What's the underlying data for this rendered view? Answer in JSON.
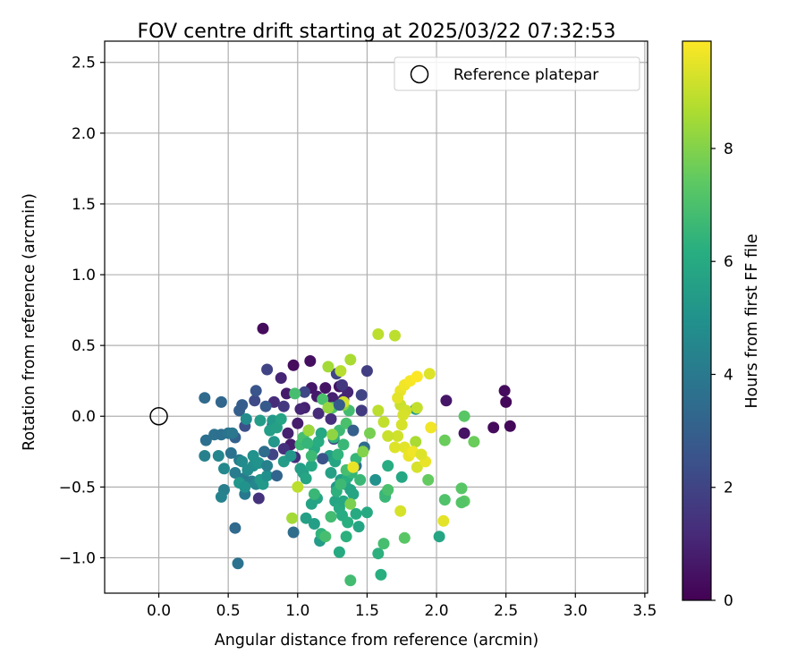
{
  "chart_data": {
    "type": "scatter",
    "title": "FOV centre drift starting at 2025/03/22 07:32:53",
    "xlabel": "Angular distance from reference (arcmin)",
    "ylabel": "Rotation from reference (arcmin)",
    "colorbar_label": "Hours from first FF file",
    "colormap": "viridis",
    "xlim": [
      -0.39,
      3.52
    ],
    "ylim": [
      -1.25,
      2.65
    ],
    "x_ticks": [
      0.0,
      0.5,
      1.0,
      1.5,
      2.0,
      2.5,
      3.0,
      3.5
    ],
    "x_tick_labels": [
      "0.0",
      "0.5",
      "1.0",
      "1.5",
      "2.0",
      "2.5",
      "3.0",
      "3.5"
    ],
    "y_ticks": [
      -1.0,
      -0.5,
      0.0,
      0.5,
      1.0,
      1.5,
      2.0,
      2.5
    ],
    "y_tick_labels": [
      "−1.0",
      "−0.5",
      "0.0",
      "0.5",
      "1.0",
      "1.5",
      "2.0",
      "2.5"
    ],
    "colorbar_range": [
      0,
      9.9
    ],
    "colorbar_ticks": [
      0,
      2,
      4,
      6,
      8
    ],
    "colorbar_tick_labels": [
      "0",
      "2",
      "4",
      "6",
      "8"
    ],
    "grid": true,
    "legend": {
      "position": "top-right",
      "entries": [
        "Reference platepar"
      ]
    },
    "reference_point": {
      "name": "Reference platepar",
      "x": 0.0,
      "y": 0.0
    },
    "points": [
      [
        0.75,
        0.62,
        0.3
      ],
      [
        0.97,
        0.36,
        0.3
      ],
      [
        1.09,
        0.39,
        0.4
      ],
      [
        2.49,
        0.18,
        0.3
      ],
      [
        2.5,
        0.1,
        0.2
      ],
      [
        2.53,
        -0.07,
        0.2
      ],
      [
        2.41,
        -0.08,
        0.3
      ],
      [
        2.2,
        -0.12,
        0.5
      ],
      [
        2.07,
        0.11,
        0.6
      ],
      [
        1.1,
        0.2,
        0.6
      ],
      [
        1.2,
        0.2,
        0.5
      ],
      [
        1.14,
        0.14,
        0.7
      ],
      [
        1.05,
        0.06,
        0.9
      ],
      [
        1.3,
        0.21,
        0.5
      ],
      [
        1.25,
        0.13,
        0.9
      ],
      [
        0.88,
        0.27,
        1.0
      ],
      [
        0.92,
        0.16,
        0.7
      ],
      [
        1.0,
        -0.05,
        0.8
      ],
      [
        1.02,
        0.05,
        1.0
      ],
      [
        0.83,
        0.1,
        1.2
      ],
      [
        0.93,
        -0.12,
        0.9
      ],
      [
        1.08,
        -0.1,
        1.1
      ],
      [
        0.95,
        -0.2,
        0.8
      ],
      [
        1.33,
        0.12,
        1.1
      ],
      [
        1.36,
        0.17,
        1.0
      ],
      [
        1.15,
        0.02,
        1.2
      ],
      [
        1.24,
        -0.02,
        1.3
      ],
      [
        0.98,
        -0.29,
        1.3
      ],
      [
        0.72,
        -0.58,
        1.4
      ],
      [
        0.9,
        -0.23,
        1.4
      ],
      [
        0.9,
        0.07,
        1.6
      ],
      [
        1.5,
        0.32,
        1.8
      ],
      [
        0.78,
        0.33,
        2.0
      ],
      [
        1.28,
        0.3,
        2.0
      ],
      [
        1.32,
        0.22,
        1.6
      ],
      [
        1.46,
        0.04,
        1.7
      ],
      [
        1.26,
        -0.16,
        2.0
      ],
      [
        0.82,
        -0.27,
        2.0
      ],
      [
        1.05,
        0.17,
        2.1
      ],
      [
        0.69,
        0.11,
        2.2
      ],
      [
        0.62,
        -0.07,
        2.4
      ],
      [
        0.58,
        0.04,
        3.0
      ],
      [
        0.7,
        0.18,
        2.6
      ],
      [
        0.77,
        0.07,
        2.8
      ],
      [
        0.82,
        -0.06,
        3.0
      ],
      [
        0.55,
        -0.15,
        3.1
      ],
      [
        0.45,
        0.1,
        3.3
      ],
      [
        0.33,
        0.13,
        3.4
      ],
      [
        0.55,
        -0.79,
        3.4
      ],
      [
        0.97,
        -0.82,
        3.5
      ],
      [
        1.48,
        -0.22,
        3.5
      ],
      [
        1.42,
        -0.35,
        3.6
      ],
      [
        0.57,
        -1.04,
        3.7
      ],
      [
        0.34,
        -0.17,
        3.6
      ],
      [
        0.4,
        -0.13,
        3.7
      ],
      [
        0.45,
        -0.13,
        3.6
      ],
      [
        0.5,
        -0.12,
        3.8
      ],
      [
        0.53,
        -0.12,
        3.9
      ],
      [
        0.52,
        -0.26,
        3.7
      ],
      [
        0.58,
        -0.31,
        4.0
      ],
      [
        0.61,
        -0.44,
        4.1
      ],
      [
        0.67,
        -0.46,
        4.2
      ],
      [
        0.7,
        -0.48,
        4.5
      ],
      [
        0.62,
        -0.55,
        4.0
      ],
      [
        0.55,
        -0.4,
        4.1
      ],
      [
        0.47,
        -0.52,
        4.2
      ],
      [
        0.47,
        -0.37,
        4.6
      ],
      [
        0.45,
        -0.57,
        4.4
      ],
      [
        0.33,
        -0.28,
        4.3
      ],
      [
        0.43,
        -0.28,
        4.5
      ],
      [
        0.6,
        -0.32,
        4.7
      ],
      [
        0.63,
        -0.02,
        4.8
      ],
      [
        0.68,
        -0.35,
        4.9
      ],
      [
        0.72,
        -0.33,
        5.0
      ],
      [
        0.73,
        -0.45,
        5.2
      ],
      [
        0.75,
        -0.48,
        5.3
      ],
      [
        0.78,
        -0.42,
        4.9
      ],
      [
        0.58,
        -0.47,
        5.2
      ],
      [
        0.62,
        -0.5,
        5.0
      ],
      [
        0.73,
        -0.03,
        5.4
      ],
      [
        0.82,
        -0.03,
        5.3
      ],
      [
        0.8,
        -0.1,
        5.5
      ],
      [
        0.85,
        -0.08,
        5.6
      ],
      [
        0.88,
        -0.02,
        5.7
      ],
      [
        0.83,
        -0.18,
        5.2
      ],
      [
        0.9,
        -0.32,
        5.4
      ],
      [
        0.95,
        -0.28,
        5.2
      ],
      [
        1.02,
        -0.37,
        5.5
      ],
      [
        1.04,
        -0.4,
        5.6
      ],
      [
        1.06,
        -0.44,
        5.8
      ],
      [
        1.1,
        -0.35,
        5.9
      ],
      [
        1.12,
        -0.23,
        6.0
      ],
      [
        1.15,
        -0.18,
        6.1
      ],
      [
        1.17,
        -0.12,
        5.9
      ],
      [
        1.14,
        -0.58,
        5.8
      ],
      [
        1.1,
        -0.62,
        5.7
      ],
      [
        1.06,
        -0.72,
        5.6
      ],
      [
        1.12,
        -0.76,
        5.5
      ],
      [
        1.16,
        -0.88,
        5.4
      ],
      [
        1.24,
        -0.4,
        5.6
      ],
      [
        1.27,
        -0.6,
        5.8
      ],
      [
        1.3,
        -0.65,
        6.0
      ],
      [
        1.32,
        -0.7,
        6.1
      ],
      [
        1.36,
        -0.75,
        6.2
      ],
      [
        1.35,
        -0.85,
        6.3
      ],
      [
        1.3,
        -0.96,
        6.0
      ],
      [
        1.33,
        -0.6,
        5.9
      ],
      [
        1.38,
        -0.52,
        5.7
      ],
      [
        1.4,
        -0.55,
        5.8
      ],
      [
        1.42,
        -0.69,
        6.0
      ],
      [
        1.44,
        -0.78,
        5.8
      ],
      [
        1.5,
        -0.68,
        6.0
      ],
      [
        1.28,
        -0.5,
        5.2
      ],
      [
        1.31,
        -0.45,
        5.5
      ],
      [
        1.34,
        -0.48,
        5.8
      ],
      [
        1.36,
        -0.43,
        6.2
      ],
      [
        1.39,
        -0.4,
        6.5
      ],
      [
        1.23,
        -0.28,
        5.5
      ],
      [
        1.27,
        -0.32,
        5.8
      ],
      [
        1.29,
        -0.27,
        6.4
      ],
      [
        1.33,
        -0.2,
        6.6
      ],
      [
        1.26,
        -0.15,
        6.3
      ],
      [
        1.3,
        -0.1,
        6.7
      ],
      [
        1.35,
        -0.05,
        7.0
      ],
      [
        1.37,
        0.04,
        6.8
      ],
      [
        1.25,
        0.06,
        7.1
      ],
      [
        1.18,
        0.12,
        7.0
      ],
      [
        0.98,
        0.16,
        6.9
      ],
      [
        1.02,
        -0.2,
        6.7
      ],
      [
        1.04,
        -0.15,
        6.9
      ],
      [
        1.07,
        -0.19,
        6.5
      ],
      [
        1.1,
        -0.28,
        6.7
      ],
      [
        1.12,
        -0.55,
        6.6
      ],
      [
        1.17,
        -0.83,
        6.4
      ],
      [
        1.2,
        -0.85,
        6.9
      ],
      [
        1.24,
        -0.71,
        6.8
      ],
      [
        1.28,
        -0.53,
        6.3
      ],
      [
        1.31,
        -0.48,
        6.7
      ],
      [
        1.35,
        -0.38,
        6.9
      ],
      [
        1.38,
        -1.16,
        6.8
      ],
      [
        1.42,
        -0.3,
        6.5
      ],
      [
        1.45,
        -0.45,
        6.6
      ],
      [
        1.58,
        -0.97,
        6.3
      ],
      [
        1.6,
        -1.12,
        6.2
      ],
      [
        1.62,
        -0.9,
        6.9
      ],
      [
        1.63,
        -0.55,
        6.4
      ],
      [
        1.65,
        -0.35,
        6.1
      ],
      [
        1.75,
        -0.43,
        5.9
      ],
      [
        2.02,
        -0.85,
        5.8
      ],
      [
        1.85,
        0.05,
        5.5
      ],
      [
        1.56,
        -0.45,
        5.0
      ],
      [
        1.63,
        -0.57,
        6.6
      ],
      [
        1.65,
        -0.52,
        7.0
      ],
      [
        1.77,
        -0.86,
        7.3
      ],
      [
        2.06,
        -0.59,
        7.1
      ],
      [
        2.18,
        -0.51,
        7.3
      ],
      [
        2.2,
        -0.6,
        7.4
      ],
      [
        2.18,
        -0.61,
        7.2
      ],
      [
        1.94,
        -0.45,
        7.5
      ],
      [
        2.06,
        -0.17,
        7.6
      ],
      [
        2.2,
        0.0,
        7.3
      ],
      [
        2.27,
        -0.18,
        7.6
      ],
      [
        1.52,
        -0.12,
        7.8
      ],
      [
        1.47,
        -0.25,
        8.0
      ],
      [
        1.38,
        -0.62,
        7.9
      ],
      [
        1.33,
        0.08,
        8.1
      ],
      [
        1.22,
        0.06,
        8.3
      ],
      [
        1.25,
        -0.13,
        8.2
      ],
      [
        1.08,
        -0.1,
        8.4
      ],
      [
        0.96,
        -0.72,
        8.5
      ],
      [
        1.0,
        -0.5,
        8.9
      ],
      [
        1.22,
        0.35,
        8.5
      ],
      [
        1.38,
        0.4,
        8.6
      ],
      [
        1.31,
        0.32,
        8.8
      ],
      [
        1.58,
        0.58,
        8.9
      ],
      [
        1.7,
        0.57,
        8.9
      ],
      [
        1.58,
        0.04,
        8.9
      ],
      [
        1.62,
        -0.04,
        9.0
      ],
      [
        1.74,
        0.08,
        9.1
      ],
      [
        1.78,
        0.04,
        9.2
      ],
      [
        1.75,
        -0.06,
        9.3
      ],
      [
        1.72,
        -0.14,
        9.2
      ],
      [
        1.77,
        -0.22,
        9.5
      ],
      [
        1.7,
        -0.22,
        9.4
      ],
      [
        1.85,
        -0.18,
        8.6
      ],
      [
        1.86,
        -0.36,
        9.3
      ],
      [
        1.8,
        -0.28,
        9.6
      ],
      [
        1.83,
        -0.25,
        9.7
      ],
      [
        1.92,
        -0.32,
        9.6
      ],
      [
        1.89,
        -0.27,
        9.4
      ],
      [
        1.76,
        0.01,
        9.3
      ],
      [
        1.86,
        0.06,
        9.0
      ],
      [
        1.74,
        0.18,
        9.6
      ],
      [
        1.77,
        0.22,
        9.7
      ],
      [
        1.81,
        0.25,
        9.8
      ],
      [
        1.86,
        0.28,
        9.9
      ],
      [
        1.95,
        0.3,
        9.4
      ],
      [
        1.72,
        0.13,
        9.5
      ],
      [
        1.74,
        -0.67,
        9.3
      ],
      [
        1.96,
        -0.08,
        9.7
      ],
      [
        1.65,
        -0.14,
        9.1
      ],
      [
        1.4,
        -0.36,
        9.6
      ],
      [
        1.33,
        0.1,
        9.2
      ],
      [
        2.05,
        -0.74,
        9.5
      ],
      [
        0.68,
        -0.28,
        5.0
      ],
      [
        0.64,
        -0.38,
        4.8
      ],
      [
        0.78,
        -0.35,
        4.3
      ],
      [
        0.76,
        -0.25,
        3.5
      ],
      [
        0.85,
        -0.42,
        3.2
      ],
      [
        1.18,
        -0.3,
        2.5
      ],
      [
        1.3,
        0.08,
        2.8
      ],
      [
        1.4,
        -0.1,
        3.0
      ],
      [
        1.46,
        0.15,
        2.0
      ],
      [
        0.6,
        0.08,
        2.9
      ]
    ]
  }
}
